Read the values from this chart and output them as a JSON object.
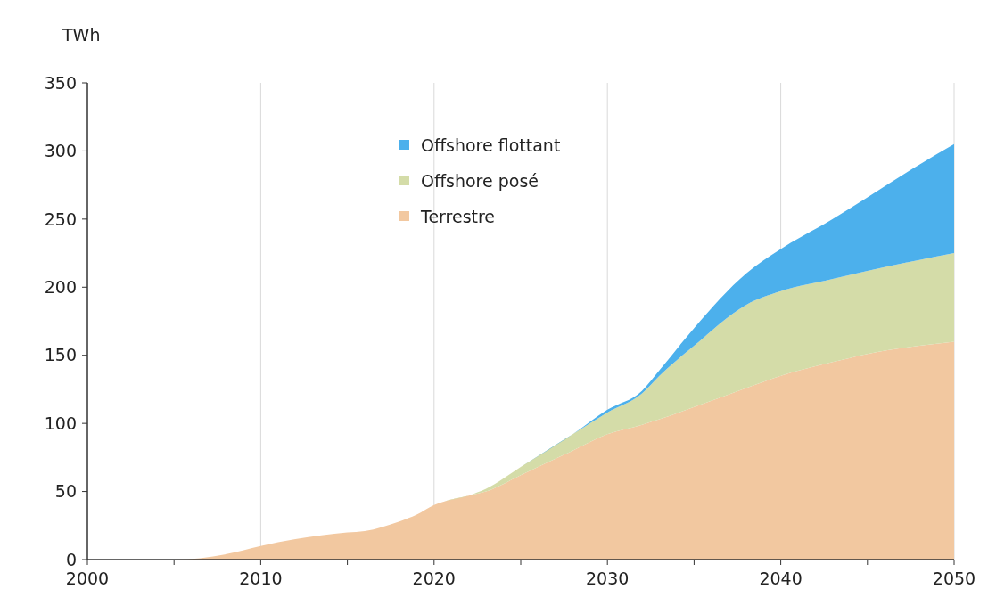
{
  "chart_data": {
    "type": "area",
    "stacked": true,
    "ylabel": "TWh",
    "x": [
      2000,
      2005,
      2008,
      2010,
      2012,
      2015,
      2016,
      2018,
      2019,
      2020,
      2022,
      2023,
      2025,
      2028,
      2030,
      2032,
      2033,
      2035,
      2038,
      2040,
      2043,
      2045,
      2048,
      2050
    ],
    "series": [
      {
        "name": "Terrestre",
        "color": "#f2c8a0",
        "values": [
          0,
          0,
          4,
          10,
          15,
          20,
          21,
          28,
          33,
          40,
          47,
          50,
          62,
          80,
          92,
          99,
          103,
          112,
          126,
          135,
          145,
          151,
          157,
          160
        ]
      },
      {
        "name": "Offshore posé",
        "color": "#d4dca8",
        "values": [
          0,
          0,
          0,
          0,
          0,
          0,
          0,
          0,
          0,
          0,
          0,
          2,
          6,
          12,
          16,
          23,
          32,
          45,
          61,
          62,
          61,
          61,
          63,
          65
        ]
      },
      {
        "name": "Offshore flottant",
        "color": "#4cb0ec",
        "values": [
          0,
          0,
          0,
          0,
          0,
          0,
          0,
          0,
          0,
          0,
          0,
          0,
          0,
          0,
          2,
          2,
          4,
          13,
          23,
          31,
          44,
          54,
          70,
          80
        ]
      }
    ],
    "xlim": [
      2000,
      2050
    ],
    "xticks": [
      2000,
      {
        "value": 2005,
        "label": null
      },
      2010,
      {
        "value": 2015,
        "label": null
      },
      2020,
      {
        "value": 2025,
        "label": null
      },
      2030,
      {
        "value": 2035,
        "label": null
      },
      2040,
      {
        "value": 2045,
        "label": null
      },
      2050
    ],
    "ylim": [
      0,
      350
    ],
    "yticks": [
      0,
      50,
      100,
      150,
      200,
      250,
      300,
      350
    ],
    "grid": "x",
    "legend": "top"
  }
}
